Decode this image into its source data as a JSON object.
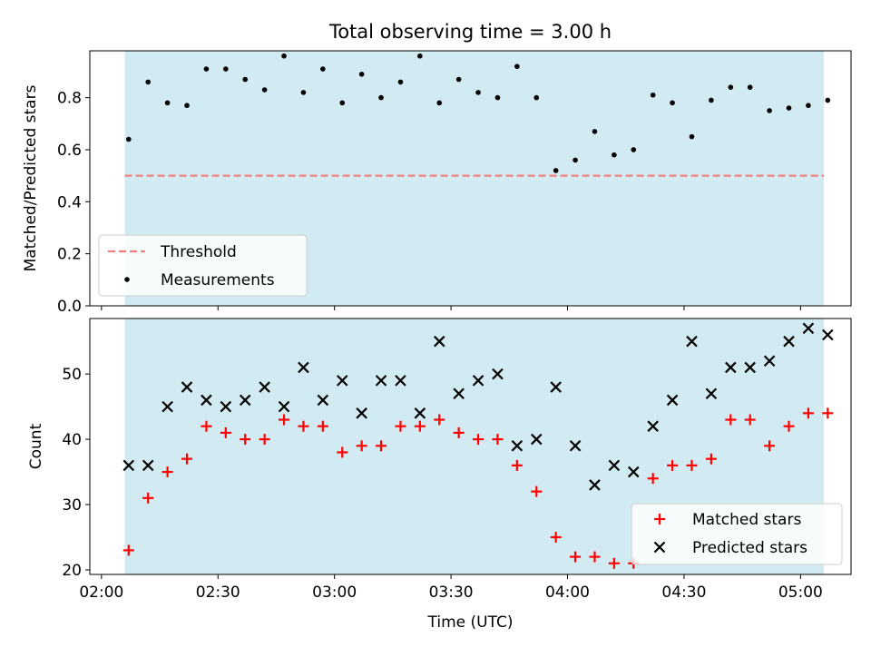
{
  "chart_data": [
    {
      "type": "scatter",
      "title": "Total observing time = 3.00 h",
      "xlabel": "",
      "ylabel": "Matched/Predicted stars",
      "x_unit": "Time (UTC)",
      "xlim": [
        "01:57",
        "05:13"
      ],
      "ylim": [
        0,
        0.98
      ],
      "yticks": [
        "0.0",
        "0.2",
        "0.4",
        "0.6",
        "0.8"
      ],
      "xticks": [
        "02:00",
        "02:30",
        "03:00",
        "03:30",
        "04:00",
        "04:30",
        "05:00"
      ],
      "shaded_span": [
        "02:06",
        "05:06"
      ],
      "shade_color": "#add8e6",
      "threshold": {
        "name": "Threshold",
        "value": 0.5,
        "x_range": [
          "02:06",
          "05:06"
        ],
        "color": "#f08080",
        "style": "dashed"
      },
      "series": [
        {
          "name": "Measurements",
          "color": "#000000",
          "marker": "dot",
          "x": [
            "02:07",
            "02:12",
            "02:17",
            "02:22",
            "02:27",
            "02:32",
            "02:37",
            "02:42",
            "02:47",
            "02:52",
            "02:57",
            "03:02",
            "03:07",
            "03:12",
            "03:17",
            "03:22",
            "03:27",
            "03:32",
            "03:37",
            "03:42",
            "03:47",
            "03:52",
            "03:57",
            "04:02",
            "04:07",
            "04:12",
            "04:17",
            "04:22",
            "04:27",
            "04:32",
            "04:37",
            "04:42",
            "04:47",
            "04:52",
            "04:57",
            "05:02",
            "05:07"
          ],
          "y": [
            0.64,
            0.86,
            0.78,
            0.77,
            0.91,
            0.91,
            0.87,
            0.83,
            0.96,
            0.82,
            0.91,
            0.78,
            0.89,
            0.8,
            0.86,
            0.96,
            0.78,
            0.87,
            0.82,
            0.8,
            0.92,
            0.8,
            0.52,
            0.56,
            0.67,
            0.58,
            0.6,
            0.81,
            0.78,
            0.65,
            0.79,
            0.84,
            0.84,
            0.75,
            0.76,
            0.77,
            0.79
          ]
        }
      ],
      "legend": {
        "location": "lower-left",
        "entries": [
          "Threshold",
          "Measurements"
        ]
      }
    },
    {
      "type": "scatter",
      "title": "",
      "xlabel": "Time (UTC)",
      "ylabel": "Count",
      "xlim": [
        "01:57",
        "05:13"
      ],
      "ylim": [
        19.3,
        58.5
      ],
      "yticks": [
        "20",
        "30",
        "40",
        "50"
      ],
      "xticks": [
        "02:00",
        "02:30",
        "03:00",
        "03:30",
        "04:00",
        "04:30",
        "05:00"
      ],
      "shaded_span": [
        "02:06",
        "05:06"
      ],
      "shade_color": "#add8e6",
      "series": [
        {
          "name": "Matched stars",
          "color": "#ff0000",
          "marker": "plus",
          "x": [
            "02:07",
            "02:12",
            "02:17",
            "02:22",
            "02:27",
            "02:32",
            "02:37",
            "02:42",
            "02:47",
            "02:52",
            "02:57",
            "03:02",
            "03:07",
            "03:12",
            "03:17",
            "03:22",
            "03:27",
            "03:32",
            "03:37",
            "03:42",
            "03:47",
            "03:52",
            "03:57",
            "04:02",
            "04:07",
            "04:12",
            "04:17",
            "04:22",
            "04:27",
            "04:32",
            "04:37",
            "04:42",
            "04:47",
            "04:52",
            "04:57",
            "05:02",
            "05:07"
          ],
          "y": [
            23,
            31,
            35,
            37,
            42,
            41,
            40,
            40,
            43,
            42,
            42,
            38,
            39,
            39,
            42,
            42,
            43,
            41,
            40,
            40,
            36,
            32,
            25,
            22,
            22,
            21,
            21,
            34,
            36,
            36,
            37,
            43,
            43,
            39,
            42,
            44,
            44
          ]
        },
        {
          "name": "Predicted stars",
          "color": "#000000",
          "marker": "cross",
          "x": [
            "02:07",
            "02:12",
            "02:17",
            "02:22",
            "02:27",
            "02:32",
            "02:37",
            "02:42",
            "02:47",
            "02:52",
            "02:57",
            "03:02",
            "03:07",
            "03:12",
            "03:17",
            "03:22",
            "03:27",
            "03:32",
            "03:37",
            "03:42",
            "03:47",
            "03:52",
            "03:57",
            "04:02",
            "04:07",
            "04:12",
            "04:17",
            "04:22",
            "04:27",
            "04:32",
            "04:37",
            "04:42",
            "04:47",
            "04:52",
            "04:57",
            "05:02",
            "05:07"
          ],
          "y": [
            36,
            36,
            45,
            48,
            46,
            45,
            46,
            48,
            45,
            51,
            46,
            49,
            44,
            49,
            49,
            44,
            55,
            47,
            49,
            50,
            39,
            40,
            48,
            39,
            33,
            36,
            35,
            42,
            46,
            55,
            47,
            51,
            51,
            52,
            55,
            57,
            56
          ]
        }
      ],
      "legend": {
        "location": "lower-right",
        "entries": [
          "Matched stars",
          "Predicted stars"
        ]
      }
    }
  ]
}
